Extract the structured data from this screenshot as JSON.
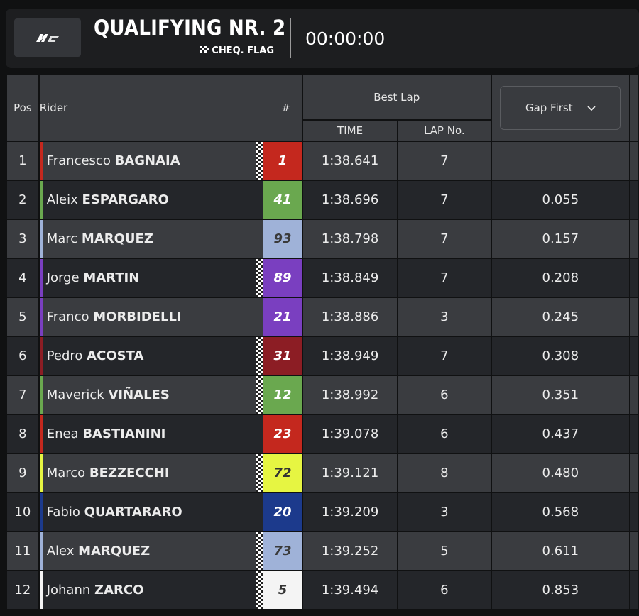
{
  "header": {
    "logo_alt": "MotoGP",
    "title": "QUALIFYING NR. 2",
    "flag_status": "CHEQ. FLAG",
    "clock": "00:00:00"
  },
  "table": {
    "columns": {
      "pos": "Pos",
      "rider": "Rider",
      "number": "#",
      "best_lap": "Best Lap",
      "time": "TIME",
      "lap_no": "LAP No.",
      "gap_select": "Gap First"
    },
    "rows": [
      {
        "pos": "1",
        "first": "Francesco",
        "last": "BAGNAIA",
        "num": "1",
        "time": "1:38.641",
        "lap": "7",
        "gap": "",
        "team_color": "#c4281e",
        "num_bg": "#c4281e",
        "num_fg": "#ffffff",
        "checker": true
      },
      {
        "pos": "2",
        "first": "Aleix",
        "last": "ESPARGARO",
        "num": "41",
        "time": "1:38.696",
        "lap": "7",
        "gap": "0.055",
        "team_color": "#6aa84f",
        "num_bg": "#6aa84f",
        "num_fg": "#ffffff",
        "checker": false
      },
      {
        "pos": "3",
        "first": "Marc",
        "last": "MARQUEZ",
        "num": "93",
        "time": "1:38.798",
        "lap": "7",
        "gap": "0.157",
        "team_color": "#9fb2d8",
        "num_bg": "#9fb2d8",
        "num_fg": "#3a3a3a",
        "checker": false
      },
      {
        "pos": "4",
        "first": "Jorge",
        "last": "MARTIN",
        "num": "89",
        "time": "1:38.849",
        "lap": "7",
        "gap": "0.208",
        "team_color": "#7a3fc0",
        "num_bg": "#7a3fc0",
        "num_fg": "#ffffff",
        "checker": true
      },
      {
        "pos": "5",
        "first": "Franco",
        "last": "MORBIDELLI",
        "num": "21",
        "time": "1:38.886",
        "lap": "3",
        "gap": "0.245",
        "team_color": "#7a3fc0",
        "num_bg": "#7a3fc0",
        "num_fg": "#ffffff",
        "checker": false
      },
      {
        "pos": "6",
        "first": "Pedro",
        "last": "ACOSTA",
        "num": "31",
        "time": "1:38.949",
        "lap": "7",
        "gap": "0.308",
        "team_color": "#8c1d24",
        "num_bg": "#8c1d24",
        "num_fg": "#ffffff",
        "checker": true
      },
      {
        "pos": "7",
        "first": "Maverick",
        "last": "VIÑALES",
        "num": "12",
        "time": "1:38.992",
        "lap": "6",
        "gap": "0.351",
        "team_color": "#6aa84f",
        "num_bg": "#6aa84f",
        "num_fg": "#ffffff",
        "checker": true
      },
      {
        "pos": "8",
        "first": "Enea",
        "last": "BASTIANINI",
        "num": "23",
        "time": "1:39.078",
        "lap": "6",
        "gap": "0.437",
        "team_color": "#c4281e",
        "num_bg": "#c4281e",
        "num_fg": "#ffffff",
        "checker": false
      },
      {
        "pos": "9",
        "first": "Marco",
        "last": "BEZZECCHI",
        "num": "72",
        "time": "1:39.121",
        "lap": "8",
        "gap": "0.480",
        "team_color": "#e6f542",
        "num_bg": "#e6f542",
        "num_fg": "#333333",
        "checker": true
      },
      {
        "pos": "10",
        "first": "Fabio",
        "last": "QUARTARARO",
        "num": "20",
        "time": "1:39.209",
        "lap": "3",
        "gap": "0.568",
        "team_color": "#1c3a8c",
        "num_bg": "#1c3a8c",
        "num_fg": "#ffffff",
        "checker": false
      },
      {
        "pos": "11",
        "first": "Alex",
        "last": "MARQUEZ",
        "num": "73",
        "time": "1:39.252",
        "lap": "5",
        "gap": "0.611",
        "team_color": "#9fb2d8",
        "num_bg": "#9fb2d8",
        "num_fg": "#3a3a3a",
        "checker": true
      },
      {
        "pos": "12",
        "first": "Johann",
        "last": "ZARCO",
        "num": "5",
        "time": "1:39.494",
        "lap": "6",
        "gap": "0.853",
        "team_color": "#f4f4f4",
        "num_bg": "#f4f4f4",
        "num_fg": "#333333",
        "checker": true
      }
    ]
  }
}
